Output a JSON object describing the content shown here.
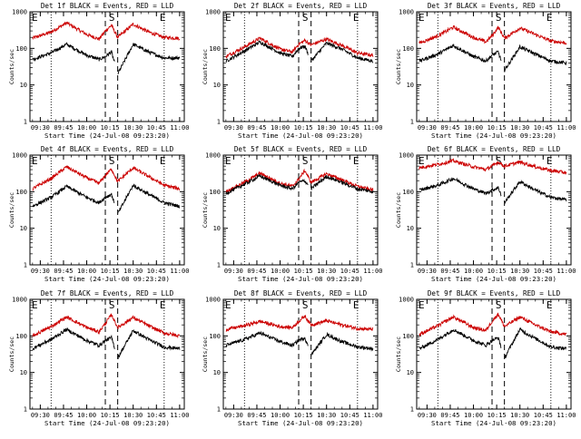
{
  "chart_data": [
    {
      "type": "line",
      "title": "Det 1f BLACK = Events, RED = LLD",
      "ylabel": "Counts/sec",
      "xlabel": "Start Time (24-Jul-08 09:23:20)",
      "x_ticks": [
        "09:30",
        "09:45",
        "10:00",
        "10:15",
        "10:30",
        "10:45",
        "11:00"
      ],
      "y_ticks": [
        "1",
        "10",
        "100",
        "1000"
      ],
      "yscale": "log",
      "ylim": [
        1,
        1000
      ],
      "xlim": [
        "09:23:20",
        "11:03"
      ],
      "markers": {
        "dotted": [
          "09:37",
          "10:50"
        ],
        "dashed": [
          "10:12",
          "10:20"
        ],
        "letters": [
          "E",
          "S",
          "E"
        ]
      },
      "series": [
        {
          "color": "#cc0000",
          "x": [
            "09:25",
            "09:37",
            "09:47",
            "10:00",
            "10:08",
            "10:12",
            "10:16",
            "10:20",
            "10:30",
            "10:40",
            "10:50",
            "11:00"
          ],
          "values": [
            190,
            280,
            500,
            240,
            180,
            300,
            430,
            200,
            460,
            280,
            200,
            190
          ]
        },
        {
          "color": "#000000",
          "x": [
            "09:25",
            "09:37",
            "09:47",
            "10:00",
            "10:08",
            "10:12",
            "10:16",
            "10:20",
            "10:30",
            "10:40",
            "10:50",
            "11:00"
          ],
          "values": [
            50,
            75,
            130,
            65,
            50,
            60,
            80,
            20,
            130,
            80,
            55,
            55
          ]
        }
      ]
    },
    {
      "type": "line",
      "title": "Det 2f BLACK = Events, RED = LLD",
      "ylabel": "Counts/sec",
      "xlabel": "Start Time (24-Jul-08 09:23:20)",
      "x_ticks": [
        "09:30",
        "09:45",
        "10:00",
        "10:15",
        "10:30",
        "10:45",
        "11:00"
      ],
      "y_ticks": [
        "1",
        "10",
        "100",
        "1000"
      ],
      "yscale": "log",
      "ylim": [
        1,
        1000
      ],
      "xlim": [
        "09:23:20",
        "11:03"
      ],
      "markers": {
        "dotted": [
          "09:37",
          "10:50"
        ],
        "dashed": [
          "10:12",
          "10:20"
        ],
        "letters": [
          "E",
          "S",
          "E"
        ]
      },
      "series": [
        {
          "color": "#cc0000",
          "x": [
            "09:25",
            "09:37",
            "09:47",
            "10:00",
            "10:08",
            "10:12",
            "10:16",
            "10:20",
            "10:30",
            "10:40",
            "10:50",
            "11:00"
          ],
          "values": [
            60,
            110,
            190,
            95,
            80,
            130,
            165,
            125,
            180,
            120,
            75,
            65
          ]
        },
        {
          "color": "#000000",
          "x": [
            "09:25",
            "09:37",
            "09:47",
            "10:00",
            "10:08",
            "10:12",
            "10:16",
            "10:20",
            "10:30",
            "10:40",
            "10:50",
            "11:00"
          ],
          "values": [
            45,
            85,
            150,
            75,
            60,
            100,
            115,
            45,
            140,
            95,
            55,
            45
          ]
        }
      ]
    },
    {
      "type": "line",
      "title": "Det 3f BLACK = Events, RED = LLD",
      "ylabel": "Counts/sec",
      "xlabel": "Start Time (24-Jul-08 09:23:20)",
      "x_ticks": [
        "09:30",
        "09:45",
        "10:00",
        "10:15",
        "10:30",
        "10:45",
        "11:00"
      ],
      "y_ticks": [
        "1",
        "10",
        "100",
        "1000"
      ],
      "yscale": "log",
      "ylim": [
        1,
        1000
      ],
      "xlim": [
        "09:23:20",
        "11:03"
      ],
      "markers": {
        "dotted": [
          "09:37",
          "10:50"
        ],
        "dashed": [
          "10:12",
          "10:20"
        ],
        "letters": [
          "E",
          "S",
          "E"
        ]
      },
      "series": [
        {
          "color": "#cc0000",
          "x": [
            "09:25",
            "09:37",
            "09:47",
            "10:00",
            "10:08",
            "10:12",
            "10:16",
            "10:20",
            "10:30",
            "10:40",
            "10:50",
            "11:00"
          ],
          "values": [
            140,
            220,
            380,
            200,
            150,
            220,
            380,
            190,
            360,
            240,
            160,
            140
          ]
        },
        {
          "color": "#000000",
          "x": [
            "09:25",
            "09:37",
            "09:47",
            "10:00",
            "10:08",
            "10:12",
            "10:16",
            "10:20",
            "10:30",
            "10:40",
            "10:50",
            "11:00"
          ],
          "values": [
            45,
            70,
            120,
            60,
            45,
            65,
            80,
            25,
            110,
            70,
            45,
            40
          ]
        }
      ]
    },
    {
      "type": "line",
      "title": "Det 4f BLACK = Events, RED = LLD",
      "ylabel": "Counts/sec",
      "xlabel": "Start Time (24-Jul-08 09:23:20)",
      "x_ticks": [
        "09:30",
        "09:45",
        "10:00",
        "10:15",
        "10:30",
        "10:45",
        "11:00"
      ],
      "y_ticks": [
        "1",
        "10",
        "100",
        "1000"
      ],
      "yscale": "log",
      "ylim": [
        1,
        1000
      ],
      "xlim": [
        "09:23:20",
        "11:03"
      ],
      "markers": {
        "dotted": [
          "09:37",
          "10:50"
        ],
        "dashed": [
          "10:12",
          "10:20"
        ],
        "letters": [
          "E",
          "S",
          "E"
        ]
      },
      "series": [
        {
          "color": "#cc0000",
          "x": [
            "09:25",
            "09:37",
            "09:47",
            "10:00",
            "10:08",
            "10:12",
            "10:16",
            "10:20",
            "10:30",
            "10:40",
            "10:50",
            "11:00"
          ],
          "values": [
            120,
            230,
            480,
            240,
            170,
            280,
            420,
            190,
            450,
            260,
            150,
            120
          ]
        },
        {
          "color": "#000000",
          "x": [
            "09:25",
            "09:37",
            "09:47",
            "10:00",
            "10:08",
            "10:12",
            "10:16",
            "10:20",
            "10:30",
            "10:40",
            "10:50",
            "11:00"
          ],
          "values": [
            40,
            70,
            140,
            70,
            50,
            70,
            85,
            25,
            150,
            85,
            50,
            40
          ]
        }
      ]
    },
    {
      "type": "line",
      "title": "Det 5f BLACK = Events, RED = LLD",
      "ylabel": "Counts/sec",
      "xlabel": "Start Time (24-Jul-08 09:23:20)",
      "x_ticks": [
        "09:30",
        "09:45",
        "10:00",
        "10:15",
        "10:30",
        "10:45",
        "11:00"
      ],
      "y_ticks": [
        "1",
        "10",
        "100",
        "1000"
      ],
      "yscale": "log",
      "ylim": [
        1,
        1000
      ],
      "xlim": [
        "09:23:20",
        "11:03"
      ],
      "markers": {
        "dotted": [
          "09:37",
          "10:50"
        ],
        "dashed": [
          "10:12",
          "10:20"
        ],
        "letters": [
          "E",
          "S",
          "E"
        ]
      },
      "series": [
        {
          "color": "#cc0000",
          "x": [
            "09:25",
            "09:37",
            "09:47",
            "10:00",
            "10:08",
            "10:12",
            "10:16",
            "10:20",
            "10:30",
            "10:40",
            "10:50",
            "11:00"
          ],
          "values": [
            100,
            180,
            320,
            170,
            140,
            220,
            380,
            180,
            310,
            210,
            140,
            110
          ]
        },
        {
          "color": "#000000",
          "x": [
            "09:25",
            "09:37",
            "09:47",
            "10:00",
            "10:08",
            "10:12",
            "10:16",
            "10:20",
            "10:30",
            "10:40",
            "10:50",
            "11:00"
          ],
          "values": [
            90,
            160,
            270,
            150,
            120,
            180,
            200,
            120,
            260,
            180,
            120,
            100
          ]
        }
      ]
    },
    {
      "type": "line",
      "title": "Det 6f BLACK = Events, RED = LLD",
      "ylabel": "Counts/sec",
      "xlabel": "Start Time (24-Jul-08 09:23:20)",
      "x_ticks": [
        "09:30",
        "09:45",
        "10:00",
        "10:15",
        "10:30",
        "10:45",
        "11:00"
      ],
      "y_ticks": [
        "1",
        "10",
        "100",
        "1000"
      ],
      "yscale": "log",
      "ylim": [
        1,
        1000
      ],
      "xlim": [
        "09:23:20",
        "11:03"
      ],
      "markers": {
        "dotted": [
          "09:37",
          "10:50"
        ],
        "dashed": [
          "10:12",
          "10:20"
        ],
        "letters": [
          "E",
          "S",
          "E"
        ]
      },
      "series": [
        {
          "color": "#cc0000",
          "x": [
            "09:25",
            "09:37",
            "09:47",
            "10:00",
            "10:08",
            "10:12",
            "10:16",
            "10:20",
            "10:30",
            "10:40",
            "10:50",
            "11:00"
          ],
          "values": [
            450,
            560,
            700,
            480,
            400,
            500,
            650,
            500,
            650,
            480,
            380,
            330
          ]
        },
        {
          "color": "#000000",
          "x": [
            "09:25",
            "09:37",
            "09:47",
            "10:00",
            "10:08",
            "10:12",
            "10:16",
            "10:20",
            "10:30",
            "10:40",
            "10:50",
            "11:00"
          ],
          "values": [
            110,
            150,
            230,
            120,
            90,
            110,
            130,
            50,
            190,
            110,
            70,
            60
          ]
        }
      ]
    },
    {
      "type": "line",
      "title": "Det 7f BLACK = Events, RED = LLD",
      "ylabel": "Counts/sec",
      "xlabel": "Start Time (24-Jul-08 09:23:20)",
      "x_ticks": [
        "09:30",
        "09:45",
        "10:00",
        "10:15",
        "10:30",
        "10:45",
        "11:00"
      ],
      "y_ticks": [
        "1",
        "10",
        "100",
        "1000"
      ],
      "yscale": "log",
      "ylim": [
        1,
        1000
      ],
      "xlim": [
        "09:23:20",
        "11:03"
      ],
      "markers": {
        "dotted": [
          "09:37",
          "10:50"
        ],
        "dashed": [
          "10:12",
          "10:20"
        ],
        "letters": [
          "E",
          "S",
          "E"
        ]
      },
      "series": [
        {
          "color": "#cc0000",
          "x": [
            "09:25",
            "09:37",
            "09:47",
            "10:00",
            "10:08",
            "10:12",
            "10:16",
            "10:20",
            "10:30",
            "10:40",
            "10:50",
            "11:00"
          ],
          "values": [
            100,
            180,
            330,
            170,
            130,
            220,
            380,
            170,
            320,
            190,
            120,
            100
          ]
        },
        {
          "color": "#000000",
          "x": [
            "09:25",
            "09:37",
            "09:47",
            "10:00",
            "10:08",
            "10:12",
            "10:16",
            "10:20",
            "10:30",
            "10:40",
            "10:50",
            "11:00"
          ],
          "values": [
            45,
            80,
            150,
            75,
            55,
            75,
            90,
            25,
            140,
            80,
            50,
            45
          ]
        }
      ]
    },
    {
      "type": "line",
      "title": "Det 8f BLACK = Events, RED = LLD",
      "ylabel": "Counts/sec",
      "xlabel": "Start Time (24-Jul-08 09:23:20)",
      "x_ticks": [
        "09:30",
        "09:45",
        "10:00",
        "10:15",
        "10:30",
        "10:45",
        "11:00"
      ],
      "y_ticks": [
        "1",
        "10",
        "100",
        "1000"
      ],
      "yscale": "log",
      "ylim": [
        1,
        1000
      ],
      "xlim": [
        "09:23:20",
        "11:03"
      ],
      "markers": {
        "dotted": [
          "09:37",
          "10:50"
        ],
        "dashed": [
          "10:12",
          "10:20"
        ],
        "letters": [
          "E",
          "S",
          "E"
        ]
      },
      "series": [
        {
          "color": "#cc0000",
          "x": [
            "09:25",
            "09:37",
            "09:47",
            "10:00",
            "10:08",
            "10:12",
            "10:16",
            "10:20",
            "10:30",
            "10:40",
            "10:50",
            "11:00"
          ],
          "values": [
            150,
            190,
            250,
            180,
            170,
            250,
            350,
            200,
            260,
            200,
            160,
            150
          ]
        },
        {
          "color": "#000000",
          "x": [
            "09:25",
            "09:37",
            "09:47",
            "10:00",
            "10:08",
            "10:12",
            "10:16",
            "10:20",
            "10:30",
            "10:40",
            "10:50",
            "11:00"
          ],
          "values": [
            55,
            80,
            120,
            70,
            55,
            75,
            90,
            30,
            110,
            70,
            50,
            45
          ]
        }
      ]
    },
    {
      "type": "line",
      "title": "Det 9f BLACK = Events, RED = LLD",
      "ylabel": "Counts/sec",
      "xlabel": "Start Time (24-Jul-08 09:23:20)",
      "x_ticks": [
        "09:30",
        "09:45",
        "10:00",
        "10:15",
        "10:30",
        "10:45",
        "11:00"
      ],
      "y_ticks": [
        "1",
        "10",
        "100",
        "1000"
      ],
      "yscale": "log",
      "ylim": [
        1,
        1000
      ],
      "xlim": [
        "09:23:20",
        "11:03"
      ],
      "markers": {
        "dotted": [
          "09:37",
          "10:50"
        ],
        "dashed": [
          "10:12",
          "10:20"
        ],
        "letters": [
          "E",
          "S",
          "E"
        ]
      },
      "series": [
        {
          "color": "#cc0000",
          "x": [
            "09:25",
            "09:37",
            "09:47",
            "10:00",
            "10:08",
            "10:12",
            "10:16",
            "10:20",
            "10:30",
            "10:40",
            "10:50",
            "11:00"
          ],
          "values": [
            110,
            190,
            330,
            170,
            140,
            250,
            400,
            180,
            330,
            200,
            130,
            110
          ]
        },
        {
          "color": "#000000",
          "x": [
            "09:25",
            "09:37",
            "09:47",
            "10:00",
            "10:08",
            "10:12",
            "10:16",
            "10:20",
            "10:30",
            "10:40",
            "10:50",
            "11:00"
          ],
          "values": [
            45,
            80,
            150,
            75,
            55,
            75,
            90,
            25,
            150,
            85,
            50,
            45
          ]
        }
      ]
    }
  ]
}
